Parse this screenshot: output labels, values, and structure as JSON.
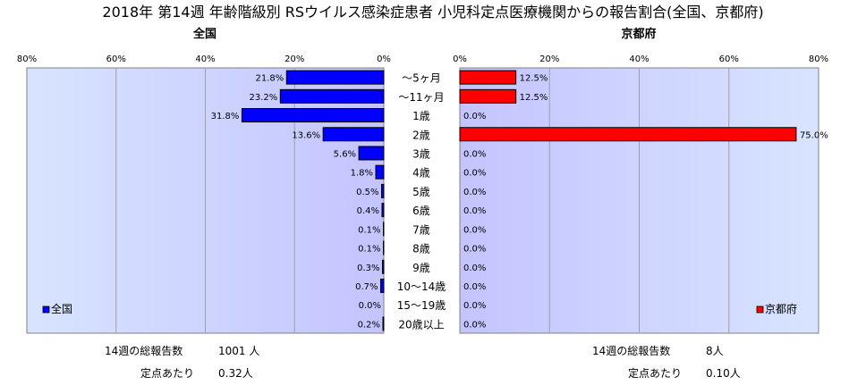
{
  "chart_data": {
    "type": "bar",
    "title": "2018年 第14週 年齢階級別 RSウイルス感染症患者 小児科定点医療機関からの報告割合(全国、京都府)",
    "categories": [
      "～5ヶ月",
      "～11ヶ月",
      "1歳",
      "2歳",
      "3歳",
      "4歳",
      "5歳",
      "6歳",
      "7歳",
      "8歳",
      "9歳",
      "10～14歳",
      "15～19歳",
      "20歳以上"
    ],
    "xlim": [
      0,
      80
    ],
    "x_ticks": [
      "80%",
      "60%",
      "40%",
      "20%",
      "0%"
    ],
    "x_ticks_right": [
      "0%",
      "20%",
      "40%",
      "60%",
      "80%"
    ],
    "grid": true,
    "series": [
      {
        "name": "全国",
        "panel_title": "全国",
        "color": "#0000ff",
        "values": [
          21.8,
          23.2,
          31.8,
          13.6,
          5.6,
          1.8,
          0.5,
          0.4,
          0.1,
          0.1,
          0.3,
          0.7,
          0.0,
          0.2
        ],
        "labels": [
          "21.8%",
          "23.2%",
          "31.8%",
          "13.6%",
          "5.6%",
          "1.8%",
          "0.5%",
          "0.4%",
          "0.1%",
          "0.1%",
          "0.3%",
          "0.7%",
          "0.0%",
          "0.2%"
        ],
        "legend_position": "bottom-left",
        "plot_bg": "#ccccff"
      },
      {
        "name": "京都府",
        "panel_title": "京都府",
        "color": "#ff0000",
        "values": [
          12.5,
          12.5,
          0.0,
          75.0,
          0.0,
          0.0,
          0.0,
          0.0,
          0.0,
          0.0,
          0.0,
          0.0,
          0.0,
          0.0
        ],
        "labels": [
          "12.5%",
          "12.5%",
          "0.0%",
          "75.0%",
          "0.0%",
          "0.0%",
          "0.0%",
          "0.0%",
          "0.0%",
          "0.0%",
          "0.0%",
          "0.0%",
          "0.0%",
          "0.0%"
        ],
        "legend_position": "bottom-right",
        "plot_bg": "#ccccff"
      }
    ]
  },
  "footer": {
    "national": {
      "total_label": "14週の総報告数",
      "total_value": "1001 人",
      "per_site_label": "定点あたり",
      "per_site_value": "0.32人"
    },
    "kyoto": {
      "total_label": "14週の総報告数",
      "total_value": "8人",
      "per_site_label": "定点あたり",
      "per_site_value": "0.10人"
    }
  }
}
